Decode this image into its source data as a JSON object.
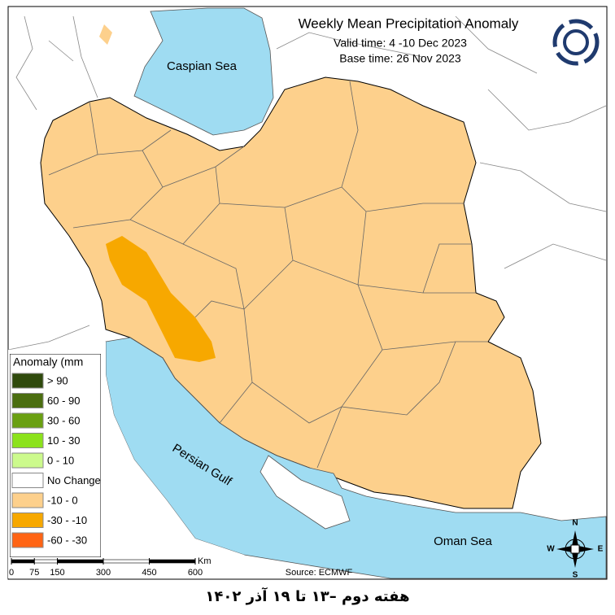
{
  "header": {
    "title": "Weekly Mean Precipitation Anomaly",
    "valid_time": "Valid time: 4 -10 Dec 2023",
    "base_time": "Base time: 26 Nov 2023"
  },
  "map_labels": {
    "caspian": "Caspian Sea",
    "gulf": "Persian Gulf",
    "oman": "Oman Sea"
  },
  "legend": {
    "title": "Anomaly (mm",
    "items": [
      {
        "label": "> 90",
        "color": "#2f4a0c"
      },
      {
        "label": "60 - 90",
        "color": "#4b6e10"
      },
      {
        "label": "30 - 60",
        "color": "#6aa011"
      },
      {
        "label": "10 - 30",
        "color": "#8ce21c"
      },
      {
        "label": "0 - 10",
        "color": "#ccfa8c"
      },
      {
        "label": "No Change",
        "color": "#ffffff"
      },
      {
        "label": "-10 - 0",
        "color": "#fdd08c"
      },
      {
        "label": "-30 - -10",
        "color": "#f7a800"
      },
      {
        "label": "-60 - -30",
        "color": "#ff6414"
      }
    ]
  },
  "scale_bar": {
    "unit": "Km",
    "ticks": [
      0,
      75,
      150,
      300,
      450,
      600
    ]
  },
  "source": "Source: ECMWF",
  "compass": {
    "n": "N",
    "s": "S",
    "e": "E",
    "w": "W"
  },
  "footer": "هفته دوم –۱۳ تا ۱۹ آذر ۱۴۰۲"
}
